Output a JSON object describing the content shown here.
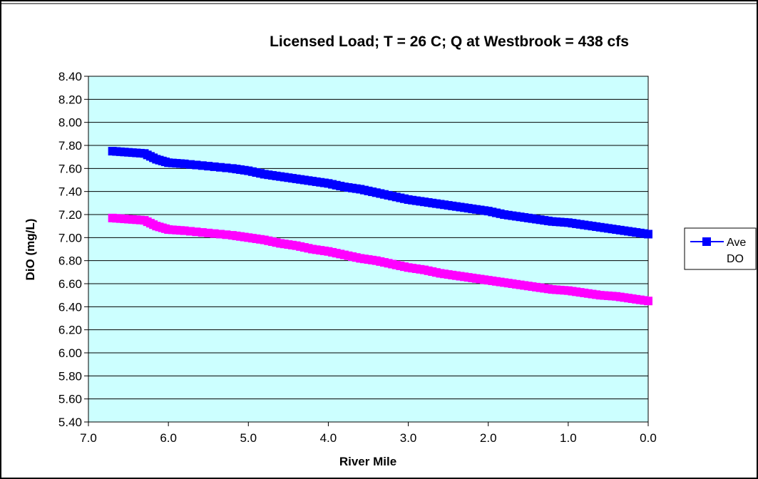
{
  "chart_data": {
    "type": "line",
    "title": "Licensed Load; T = 26 C; Q at Westbrook = 438 cfs",
    "xlabel": "River Mile",
    "ylabel": "DiO (mg/L)",
    "xlim": [
      7.0,
      0.0
    ],
    "x_reversed": true,
    "ylim": [
      5.4,
      8.4
    ],
    "yticks": [
      "5.40",
      "5.60",
      "5.80",
      "6.00",
      "6.20",
      "6.40",
      "6.60",
      "6.80",
      "7.00",
      "7.20",
      "7.40",
      "7.60",
      "7.80",
      "8.00",
      "8.20",
      "8.40"
    ],
    "xticks": [
      "7.0",
      "6.0",
      "5.0",
      "4.0",
      "3.0",
      "2.0",
      "1.0",
      "0.0"
    ],
    "grid": "horizontal",
    "plot_background": "#ccffff",
    "legend": {
      "placement": "right",
      "entries": [
        "Ave",
        "DO"
      ]
    },
    "series": [
      {
        "name": "Ave DO",
        "color": "#0000ff",
        "marker": "square",
        "x": [
          6.7,
          6.5,
          6.3,
          6.15,
          6.0,
          5.8,
          5.5,
          5.2,
          5.0,
          4.8,
          4.6,
          4.4,
          4.2,
          4.0,
          3.8,
          3.6,
          3.4,
          3.2,
          3.0,
          2.8,
          2.6,
          2.4,
          2.2,
          2.0,
          1.8,
          1.6,
          1.4,
          1.2,
          1.0,
          0.8,
          0.6,
          0.4,
          0.2,
          0.0
        ],
        "y": [
          7.75,
          7.74,
          7.73,
          7.68,
          7.65,
          7.64,
          7.62,
          7.6,
          7.58,
          7.55,
          7.53,
          7.51,
          7.49,
          7.47,
          7.44,
          7.42,
          7.39,
          7.36,
          7.33,
          7.31,
          7.29,
          7.27,
          7.25,
          7.23,
          7.2,
          7.18,
          7.16,
          7.14,
          7.13,
          7.11,
          7.09,
          7.07,
          7.05,
          7.03
        ]
      },
      {
        "color": "#ff00ff",
        "marker": "square",
        "x": [
          6.7,
          6.5,
          6.3,
          6.15,
          6.0,
          5.8,
          5.5,
          5.2,
          5.0,
          4.8,
          4.6,
          4.4,
          4.2,
          4.0,
          3.8,
          3.6,
          3.4,
          3.2,
          3.0,
          2.8,
          2.6,
          2.4,
          2.2,
          2.0,
          1.8,
          1.6,
          1.4,
          1.2,
          1.0,
          0.8,
          0.6,
          0.4,
          0.2,
          0.0
        ],
        "y": [
          7.17,
          7.16,
          7.15,
          7.1,
          7.07,
          7.06,
          7.04,
          7.02,
          7.0,
          6.98,
          6.95,
          6.93,
          6.9,
          6.88,
          6.85,
          6.82,
          6.8,
          6.77,
          6.74,
          6.72,
          6.69,
          6.67,
          6.65,
          6.63,
          6.61,
          6.59,
          6.57,
          6.55,
          6.54,
          6.52,
          6.5,
          6.49,
          6.47,
          6.45
        ]
      }
    ]
  }
}
